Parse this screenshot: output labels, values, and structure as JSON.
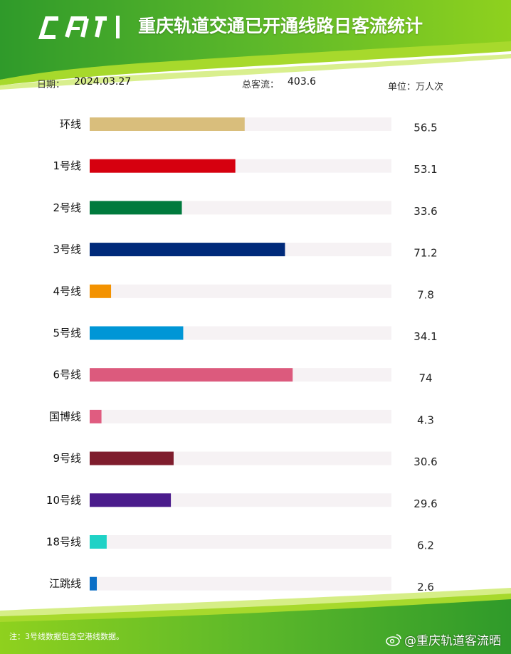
{
  "header": {
    "title": "重庆轨道交通已开通线路日客流统计",
    "logo_text": "CRT"
  },
  "meta": {
    "date_label": "日期：",
    "date_value": "2024.03.27",
    "total_label": "总客流：",
    "total_value": "403.6",
    "unit_label": "单位：万人次"
  },
  "chart_data": {
    "type": "bar",
    "orientation": "horizontal",
    "categories": [
      "环线",
      "1号线",
      "2号线",
      "3号线",
      "4号线",
      "5号线",
      "6号线",
      "国博线",
      "9号线",
      "10号线",
      "18号线",
      "江跳线"
    ],
    "values": [
      56.5,
      53.1,
      33.6,
      71.2,
      7.8,
      34.1,
      74,
      4.3,
      30.6,
      29.6,
      6.2,
      2.6
    ],
    "value_labels": [
      "56.5",
      "53.1",
      "33.6",
      "71.2",
      "7.8",
      "34.1",
      "74",
      "4.3",
      "30.6",
      "29.6",
      "6.2",
      "2.6"
    ],
    "colors": [
      "#d9be7c",
      "#d6000f",
      "#007a3d",
      "#002a7a",
      "#f39200",
      "#0096d6",
      "#dc5a7d",
      "#e05c80",
      "#7f1d2d",
      "#4b1c8c",
      "#1fd2c6",
      "#0b6fc6"
    ],
    "track_color": "#f6f2f4",
    "xlim": [
      0,
      110
    ],
    "grid": false,
    "legend": "none"
  },
  "footer": {
    "note": "注：3号线数据包含空港线数据。",
    "watermark": "@重庆轨道客流晒"
  }
}
